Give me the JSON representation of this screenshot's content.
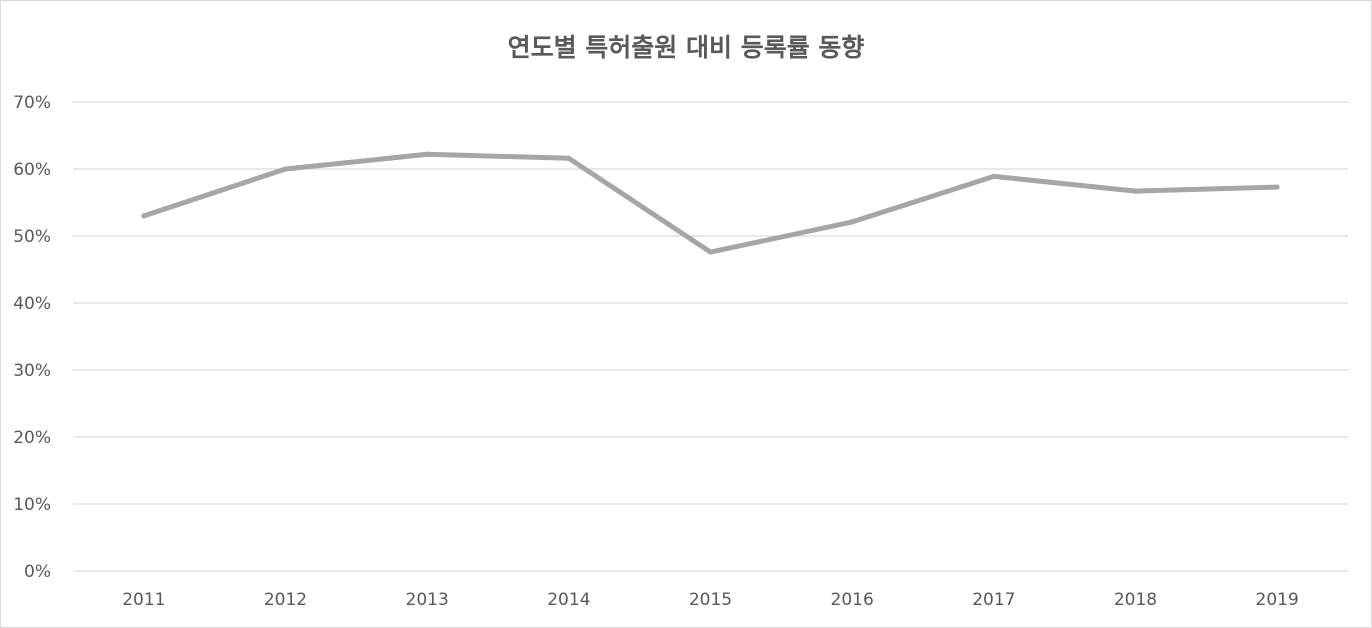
{
  "chart_data": {
    "type": "line",
    "title": "연도별 특허출원 대비 등록률 동향",
    "xlabel": "",
    "ylabel": "",
    "categories": [
      "2011",
      "2012",
      "2013",
      "2014",
      "2015",
      "2016",
      "2017",
      "2018",
      "2019"
    ],
    "series": [
      {
        "values": [
          53.0,
          60.0,
          62.2,
          61.6,
          47.6,
          52.1,
          58.9,
          56.7,
          57.3
        ]
      }
    ],
    "ylim": [
      0,
      70
    ],
    "yticks": [
      0,
      10,
      20,
      30,
      40,
      50,
      60,
      70
    ],
    "ytick_labels": [
      "0%",
      "10%",
      "20%",
      "30%",
      "40%",
      "50%",
      "60%",
      "70%"
    ],
    "grid": true,
    "legend": "none",
    "colors": {
      "line": "#a6a6a6",
      "grid": "#d9d9d9",
      "text": "#595959"
    }
  }
}
